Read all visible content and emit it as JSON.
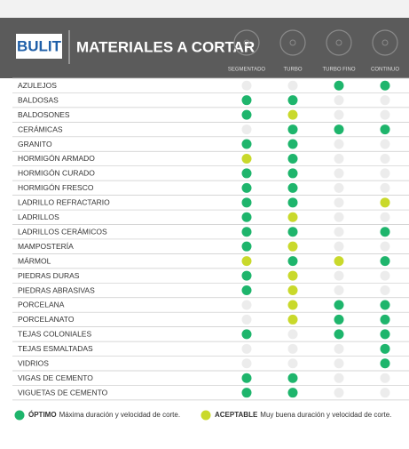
{
  "header": {
    "logo": "BULIT",
    "title": "MATERIALES A CORTAR",
    "columns": [
      "SEGMENTADO",
      "TURBO",
      "TURBO FINO",
      "CONTINUO"
    ]
  },
  "legend": [
    {
      "label": "ÓPTIMO",
      "text": "Máxima duración y velocidad de corte.",
      "color": "#1eb56c"
    },
    {
      "label": "ACEPTABLE",
      "text": "Muy buena duración y velocidad de corte.",
      "color": "#c9d92b"
    }
  ],
  "empty_color": "#ececec",
  "rows": [
    {
      "name": "AZULEJOS",
      "ratings": [
        null,
        null,
        0,
        0
      ]
    },
    {
      "name": "BALDOSAS",
      "ratings": [
        0,
        0,
        null,
        null
      ]
    },
    {
      "name": "BALDOSONES",
      "ratings": [
        0,
        1,
        null,
        null
      ]
    },
    {
      "name": "CERÁMICAS",
      "ratings": [
        null,
        0,
        0,
        0
      ]
    },
    {
      "name": "GRANITO",
      "ratings": [
        0,
        0,
        null,
        null
      ]
    },
    {
      "name": "HORMIGÓN ARMADO",
      "ratings": [
        1,
        0,
        null,
        null
      ]
    },
    {
      "name": "HORMIGÓN CURADO",
      "ratings": [
        0,
        0,
        null,
        null
      ]
    },
    {
      "name": "HORMIGÓN FRESCO",
      "ratings": [
        0,
        0,
        null,
        null
      ]
    },
    {
      "name": "LADRILLO REFRACTARIO",
      "ratings": [
        0,
        0,
        null,
        1
      ]
    },
    {
      "name": "LADRILLOS",
      "ratings": [
        0,
        1,
        null,
        null
      ]
    },
    {
      "name": "LADRILLOS CERÁMICOS",
      "ratings": [
        0,
        0,
        null,
        0
      ]
    },
    {
      "name": "MAMPOSTERÍA",
      "ratings": [
        0,
        1,
        null,
        null
      ]
    },
    {
      "name": "MÁRMOL",
      "ratings": [
        1,
        0,
        1,
        0
      ]
    },
    {
      "name": "PIEDRAS DURAS",
      "ratings": [
        0,
        1,
        null,
        null
      ]
    },
    {
      "name": "PIEDRAS ABRASIVAS",
      "ratings": [
        0,
        1,
        null,
        null
      ]
    },
    {
      "name": "PORCELANA",
      "ratings": [
        null,
        1,
        0,
        0
      ]
    },
    {
      "name": "PORCELANATO",
      "ratings": [
        null,
        1,
        0,
        0
      ]
    },
    {
      "name": "TEJAS COLONIALES",
      "ratings": [
        0,
        null,
        0,
        0
      ]
    },
    {
      "name": "TEJAS ESMALTADAS",
      "ratings": [
        null,
        null,
        null,
        0
      ]
    },
    {
      "name": "VIDRIOS",
      "ratings": [
        null,
        null,
        null,
        0
      ]
    },
    {
      "name": "VIGAS DE CEMENTO",
      "ratings": [
        0,
        0,
        null,
        null
      ]
    },
    {
      "name": "VIGUETAS DE CEMENTO",
      "ratings": [
        0,
        0,
        null,
        null
      ]
    }
  ]
}
